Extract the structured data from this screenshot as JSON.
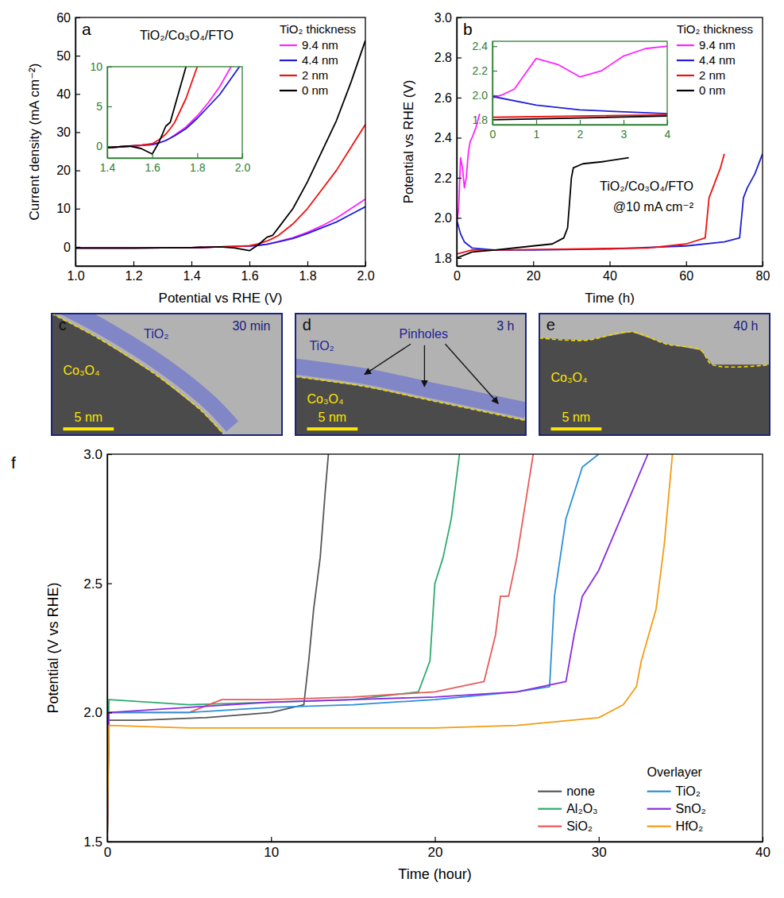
{
  "chart_data": [
    {
      "type": "line",
      "panel": "a",
      "annotations": [
        "TiO₂/Co₃O₄/FTO"
      ],
      "x_label": "Potential vs RHE (V)",
      "y_label": "Current density (mA cm⁻²)",
      "xlim": [
        1.0,
        2.0
      ],
      "xticks": [
        {
          "value": 1,
          "label": "1.0"
        },
        1.2,
        1.4,
        1.6,
        1.8,
        {
          "value": 2,
          "label": "2.0"
        }
      ],
      "ylim": [
        -5,
        60
      ],
      "yticks": [
        0,
        10,
        20,
        30,
        40,
        50,
        60
      ],
      "legend": "upper right",
      "legend_title": "TiO₂ thickness",
      "series": [
        {
          "name": "9.4 nm",
          "color": "#ff22ff",
          "x": [
            1.0,
            1.2,
            1.4,
            1.5,
            1.55,
            1.6,
            1.63,
            1.66,
            1.68,
            1.7,
            1.75,
            1.8,
            1.85,
            1.9,
            1.95,
            2.0
          ],
          "values": [
            -0.3,
            -0.3,
            -0.2,
            0,
            0.1,
            0.2,
            0.4,
            0.7,
            1,
            1.4,
            2.4,
            3.8,
            5.5,
            7.5,
            10,
            12.5
          ]
        },
        {
          "name": "4.4 nm",
          "color": "#1f1fd6",
          "x": [
            1.0,
            1.2,
            1.4,
            1.5,
            1.55,
            1.6,
            1.63,
            1.66,
            1.68,
            1.7,
            1.75,
            1.8,
            1.85,
            1.9,
            1.95,
            2.0
          ],
          "values": [
            -0.3,
            -0.3,
            -0.2,
            0,
            0.1,
            0.2,
            0.4,
            0.7,
            1,
            1.3,
            2.2,
            3.5,
            5,
            6.5,
            8.5,
            10.5
          ]
        },
        {
          "name": "2 nm",
          "color": "#ee1111",
          "x": [
            1.0,
            1.2,
            1.4,
            1.5,
            1.55,
            1.6,
            1.63,
            1.66,
            1.68,
            1.7,
            1.75,
            1.8,
            1.85,
            1.9,
            1.95,
            2.0
          ],
          "values": [
            -0.3,
            -0.3,
            -0.2,
            0,
            0.1,
            0.3,
            0.8,
            1.5,
            2.2,
            3,
            6,
            10,
            15,
            20,
            26,
            32
          ]
        },
        {
          "name": "0 nm",
          "color": "#000000",
          "x": [
            1.0,
            1.2,
            1.4,
            1.5,
            1.55,
            1.6,
            1.63,
            1.66,
            1.68,
            1.7,
            1.75,
            1.8,
            1.85,
            1.9,
            1.95,
            2.0
          ],
          "values": [
            -0.3,
            -0.3,
            -0.2,
            0,
            -0.3,
            -1,
            0.5,
            2.5,
            3,
            5,
            10,
            17,
            25,
            33,
            43,
            54
          ]
        }
      ],
      "inset": {
        "xlim": [
          1.4,
          2.0
        ],
        "xticks": [
          1.4,
          1.6,
          1.8,
          {
            "value": 2,
            "label": "2.0"
          }
        ],
        "ylim": [
          -1.5,
          10
        ],
        "yticks": [
          0,
          5,
          10
        ]
      }
    },
    {
      "type": "line",
      "panel": "b",
      "annotations": [
        "TiO₂/Co₃O₄/FTO",
        "@10 mA cm⁻²"
      ],
      "x_label": "Time (h)",
      "y_label": "Potential vs RHE (V)",
      "xlim": [
        0,
        80
      ],
      "xticks": [
        0,
        20,
        40,
        60,
        80
      ],
      "ylim": [
        1.76,
        3.0
      ],
      "yticks": [
        1.8,
        {
          "value": 2,
          "label": "2.0"
        },
        2.2,
        2.4,
        2.6,
        2.8,
        {
          "value": 3,
          "label": "3.0"
        }
      ],
      "legend": "upper right",
      "legend_title": "TiO₂ thickness",
      "series": [
        {
          "name": "9.4 nm",
          "color": "#ff22ff",
          "x": [
            0,
            0.2,
            0.5,
            0.8,
            1,
            1.5,
            2,
            2.5,
            3,
            3.5,
            4,
            5,
            6
          ],
          "values": [
            1.98,
            2.0,
            2.05,
            2.2,
            2.3,
            2.25,
            2.15,
            2.2,
            2.32,
            2.38,
            2.4,
            2.45,
            2.52
          ]
        },
        {
          "name": "4.4 nm",
          "color": "#1f1fd6",
          "x": [
            0,
            1,
            2,
            4,
            10,
            20,
            40,
            60,
            70,
            74,
            75,
            76,
            78,
            80
          ],
          "values": [
            1.99,
            1.92,
            1.88,
            1.85,
            1.84,
            1.84,
            1.845,
            1.86,
            1.88,
            1.9,
            2.1,
            2.15,
            2.22,
            2.32
          ]
        },
        {
          "name": "2 nm",
          "color": "#ee1111",
          "x": [
            0,
            4,
            10,
            30,
            50,
            60,
            65,
            66,
            67,
            68,
            69,
            70
          ],
          "values": [
            1.82,
            1.84,
            1.84,
            1.845,
            1.85,
            1.87,
            1.9,
            2.1,
            2.15,
            2.2,
            2.25,
            2.32
          ]
        },
        {
          "name": "0 nm",
          "color": "#000000",
          "x": [
            0,
            4,
            10,
            20,
            25,
            28,
            29,
            30,
            30.5,
            33,
            38,
            45
          ],
          "values": [
            1.8,
            1.83,
            1.84,
            1.86,
            1.87,
            1.9,
            1.95,
            2.2,
            2.25,
            2.27,
            2.28,
            2.3
          ]
        }
      ],
      "inset": {
        "xlim": [
          0,
          4
        ],
        "xticks": [
          0,
          1,
          2,
          3,
          4
        ],
        "ylim": [
          1.76,
          2.44
        ],
        "yticks": [
          1.8,
          {
            "value": 2,
            "label": "2.0"
          },
          2.2,
          2.4
        ]
      }
    },
    {
      "type": "image",
      "panel": "c",
      "overlayer_label": "TiO₂",
      "core_label": "Co₃O₄",
      "time": "30 min",
      "scale_bar": "5 nm"
    },
    {
      "type": "image",
      "panel": "d",
      "overlayer_label": "TiO₂",
      "pointer_label": "Pinholes",
      "core_label": "Co₃O₄",
      "time": "3 h",
      "scale_bar": "5 nm"
    },
    {
      "type": "image",
      "panel": "e",
      "core_label": "Co₃O₄",
      "time": "40 h",
      "scale_bar": "5 nm"
    },
    {
      "type": "line",
      "panel": "f",
      "x_label": "Time (hour)",
      "y_label": "Potential (V vs RHE)",
      "xlim": [
        0,
        40
      ],
      "xticks": [
        0,
        10,
        20,
        30,
        40
      ],
      "ylim": [
        1.5,
        3.0
      ],
      "yticks": [
        1.5,
        {
          "value": 2,
          "label": "2.0"
        },
        2.5,
        {
          "value": 3,
          "label": "3.0"
        }
      ],
      "legend": "lower right",
      "legend_title": "Overlayer",
      "series": [
        {
          "name": "none",
          "color": "#555555",
          "x": [
            0,
            0.1,
            2,
            6,
            10,
            12,
            12.3,
            12.6,
            13,
            13.3,
            13.5
          ],
          "values": [
            1.5,
            1.97,
            1.97,
            1.98,
            2.0,
            2.03,
            2.2,
            2.4,
            2.6,
            2.85,
            3.0
          ]
        },
        {
          "name": "Al₂O₃",
          "color": "#2eaa6e",
          "x": [
            0,
            0.1,
            5,
            10,
            15,
            19,
            19.7,
            20,
            20.5,
            21,
            21.5
          ],
          "values": [
            1.5,
            2.05,
            2.03,
            2.04,
            2.05,
            2.08,
            2.2,
            2.5,
            2.6,
            2.75,
            3.0
          ]
        },
        {
          "name": "SiO₂",
          "color": "#e85a5a",
          "x": [
            0,
            0.1,
            5,
            7,
            10,
            15,
            20,
            23,
            23.7,
            24,
            24.5,
            25,
            25.5,
            26
          ],
          "values": [
            1.5,
            2.0,
            2.0,
            2.05,
            2.05,
            2.06,
            2.08,
            2.12,
            2.3,
            2.45,
            2.45,
            2.6,
            2.8,
            3.0
          ]
        },
        {
          "name": "TiO₂",
          "color": "#2b8fd9",
          "x": [
            0,
            0.1,
            5,
            10,
            15,
            20,
            25,
            27,
            27.3,
            28,
            29,
            30
          ],
          "values": [
            1.5,
            2.0,
            2.0,
            2.02,
            2.03,
            2.05,
            2.08,
            2.1,
            2.45,
            2.75,
            2.95,
            3.0
          ]
        },
        {
          "name": "SnO₂",
          "color": "#8a2be2",
          "x": [
            0,
            0.1,
            5,
            10,
            15,
            20,
            25,
            28,
            28.5,
            29,
            30,
            31,
            32,
            33
          ],
          "values": [
            1.5,
            2.0,
            2.02,
            2.04,
            2.05,
            2.06,
            2.08,
            2.12,
            2.3,
            2.45,
            2.55,
            2.7,
            2.85,
            3.0
          ]
        },
        {
          "name": "HfO₂",
          "color": "#f39c12",
          "x": [
            0,
            0.1,
            5,
            10,
            15,
            20,
            25,
            30,
            31.5,
            32.3,
            32.6,
            33.5,
            34,
            34.5
          ],
          "values": [
            1.5,
            1.95,
            1.94,
            1.94,
            1.94,
            1.94,
            1.95,
            1.98,
            2.03,
            2.1,
            2.2,
            2.4,
            2.65,
            3.0
          ]
        }
      ]
    }
  ]
}
